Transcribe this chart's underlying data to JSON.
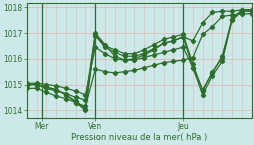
{
  "xlabel": "Pression niveau de la mer( hPa )",
  "bg_color": "#cce8e8",
  "grid_color": "#ddbfbf",
  "line_color": "#2d6e2d",
  "text_color": "#2d6e2d",
  "axis_color": "#2d6e2d",
  "ylim": [
    1013.7,
    1018.15
  ],
  "xlim": [
    0,
    23
  ],
  "yticks": [
    1014,
    1015,
    1016,
    1017,
    1018
  ],
  "xtick_positions": [
    1.5,
    7,
    16
  ],
  "xtick_labels": [
    "Mer",
    "Ven",
    "Jeu"
  ],
  "vlines": [
    1.5,
    7,
    16
  ],
  "series": [
    {
      "x": [
        0,
        1,
        2,
        3,
        4,
        5,
        6,
        7,
        8,
        9,
        10,
        11,
        12,
        13,
        14,
        15,
        16,
        17,
        18,
        19,
        20,
        21,
        22,
        23
      ],
      "y": [
        1015.0,
        1015.0,
        1014.85,
        1014.75,
        1014.65,
        1014.5,
        1014.4,
        1017.0,
        1016.55,
        1016.1,
        1015.95,
        1016.0,
        1016.15,
        1016.35,
        1016.6,
        1016.7,
        1016.85,
        1016.7,
        1017.4,
        1017.8,
        1017.85,
        1017.85,
        1017.9,
        1017.9
      ]
    },
    {
      "x": [
        0,
        1,
        2,
        3,
        4,
        5,
        6,
        7,
        8,
        9,
        10,
        11,
        12,
        13,
        14,
        15,
        16,
        17,
        18,
        19,
        20,
        21,
        22,
        23
      ],
      "y": [
        1014.85,
        1014.85,
        1014.7,
        1014.55,
        1014.45,
        1014.3,
        1014.15,
        1015.6,
        1015.5,
        1015.45,
        1015.5,
        1015.55,
        1015.65,
        1015.75,
        1015.85,
        1015.9,
        1015.95,
        1016.05,
        1016.95,
        1017.25,
        1017.65,
        1017.7,
        1017.75,
        1017.75
      ]
    },
    {
      "x": [
        0,
        1,
        2,
        3,
        4,
        5,
        6,
        7,
        8,
        9,
        10,
        11,
        12,
        13,
        14,
        15,
        16,
        17,
        18,
        19,
        20,
        21,
        22,
        23
      ],
      "y": [
        1015.0,
        1015.0,
        1014.9,
        1014.8,
        1014.6,
        1014.35,
        1014.05,
        1016.95,
        1016.5,
        1016.35,
        1016.2,
        1016.2,
        1016.35,
        1016.55,
        1016.75,
        1016.85,
        1016.95,
        1015.8,
        1014.75,
        1015.5,
        1016.05,
        1017.55,
        1017.9,
        1017.9
      ]
    },
    {
      "x": [
        0,
        1,
        2,
        3,
        4,
        5,
        6,
        7,
        8,
        9,
        10,
        11,
        12,
        13,
        14,
        15,
        16,
        17,
        18,
        19,
        20,
        21,
        22,
        23
      ],
      "y": [
        1015.0,
        1015.0,
        1014.9,
        1014.8,
        1014.6,
        1014.3,
        1014.0,
        1016.9,
        1016.45,
        1016.25,
        1016.1,
        1016.1,
        1016.2,
        1016.4,
        1016.6,
        1016.7,
        1016.85,
        1015.65,
        1014.6,
        1015.35,
        1015.9,
        1017.5,
        1017.85,
        1017.85
      ]
    },
    {
      "x": [
        0,
        1,
        2,
        3,
        4,
        5,
        6,
        7,
        8,
        9,
        10,
        11,
        12,
        13,
        14,
        15,
        16,
        17,
        18,
        19,
        20,
        21,
        22,
        23
      ],
      "y": [
        1015.05,
        1015.05,
        1015.0,
        1014.95,
        1014.85,
        1014.75,
        1014.6,
        1016.45,
        1016.2,
        1016.0,
        1015.95,
        1015.95,
        1016.05,
        1016.15,
        1016.25,
        1016.35,
        1016.45,
        1015.65,
        1014.8,
        1015.45,
        1016.1,
        1017.5,
        1017.85,
        1017.85
      ]
    }
  ]
}
